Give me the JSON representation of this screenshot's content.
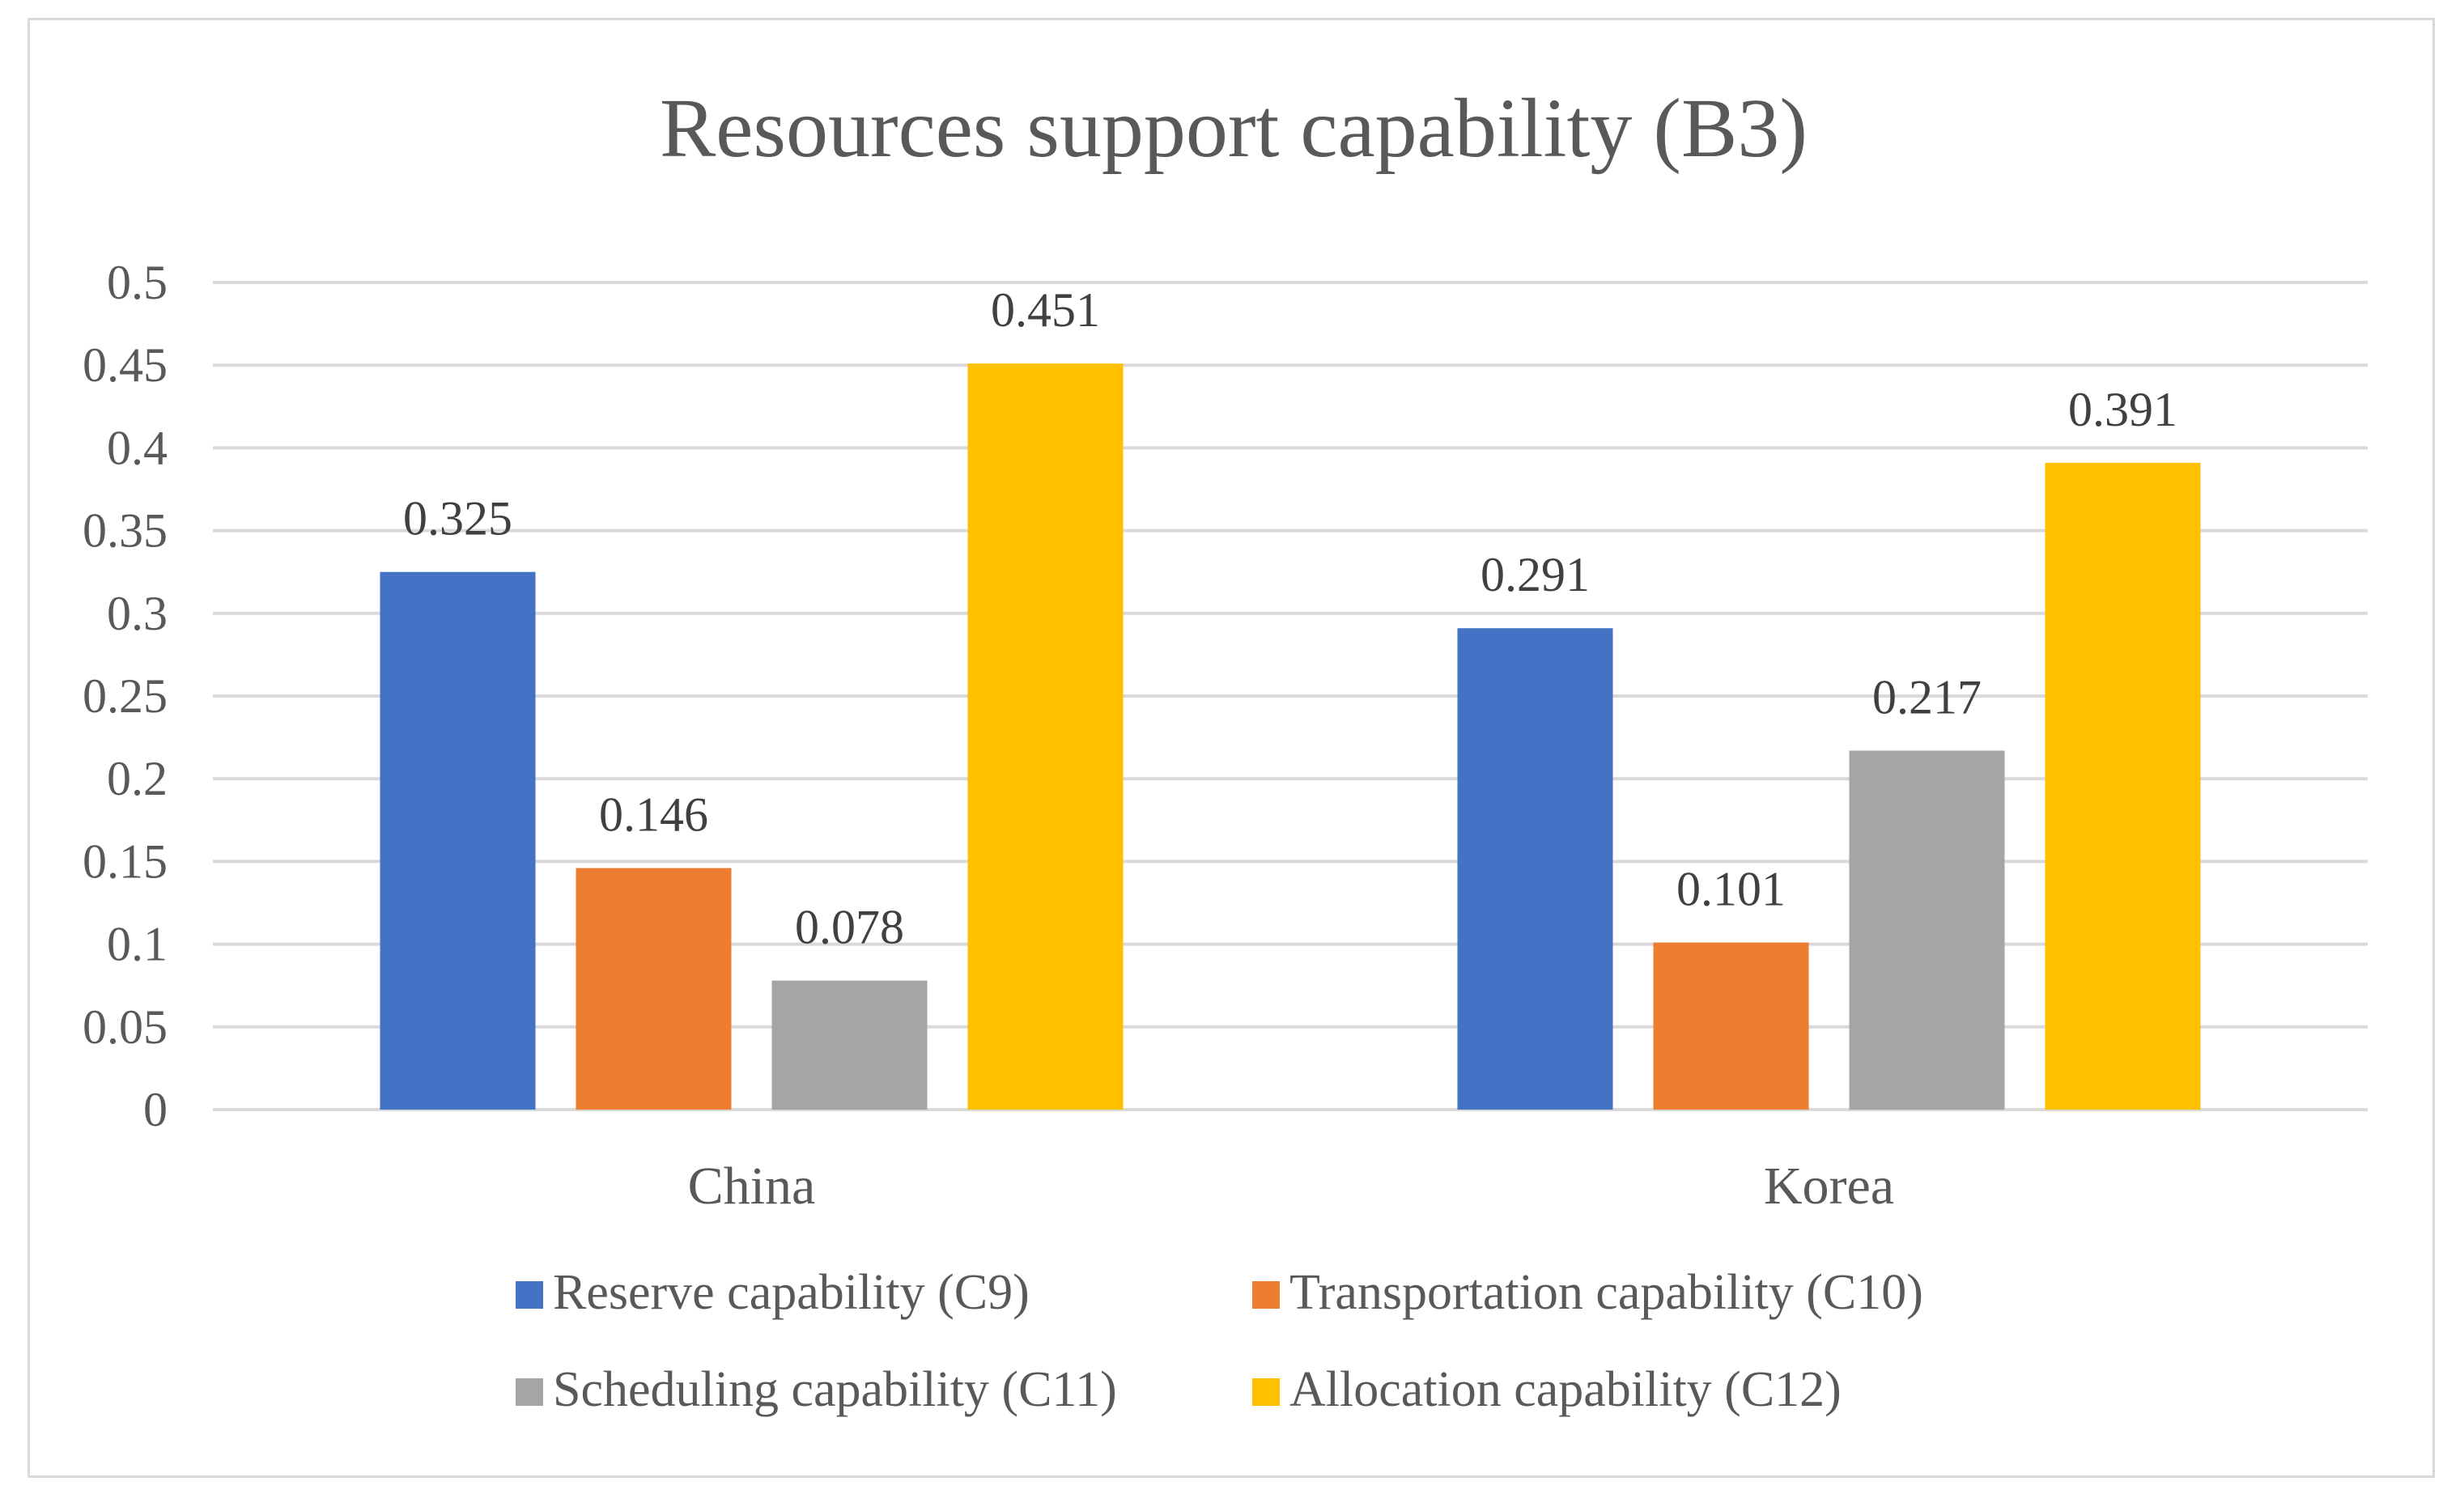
{
  "chart_data": {
    "type": "bar",
    "title": "Resources support capability (B3)",
    "xlabel": "",
    "ylabel": "",
    "categories": [
      "China",
      "Korea"
    ],
    "series": [
      {
        "name": "Reserve capability (C9)",
        "color": "#4472C4",
        "values": [
          0.325,
          0.291
        ]
      },
      {
        "name": "Transportation capability (C10)",
        "color": "#ED7D31",
        "values": [
          0.146,
          0.101
        ]
      },
      {
        "name": "Scheduling capability (C11)",
        "color": "#A5A5A5",
        "values": [
          0.078,
          0.217
        ]
      },
      {
        "name": "Allocation capability (C12)",
        "color": "#FFC000",
        "values": [
          0.451,
          0.391
        ]
      }
    ],
    "ylim": [
      0,
      0.5
    ],
    "yticks": [
      "0",
      "0.05",
      "0.1",
      "0.15",
      "0.2",
      "0.25",
      "0.3",
      "0.35",
      "0.4",
      "0.45",
      "0.5"
    ],
    "data_labels": [
      [
        "0.325",
        "0.291"
      ],
      [
        "0.146",
        "0.101"
      ],
      [
        "0.078",
        "0.217"
      ],
      [
        "0.451",
        "0.391"
      ]
    ],
    "grid": true,
    "legend_position": "bottom"
  }
}
